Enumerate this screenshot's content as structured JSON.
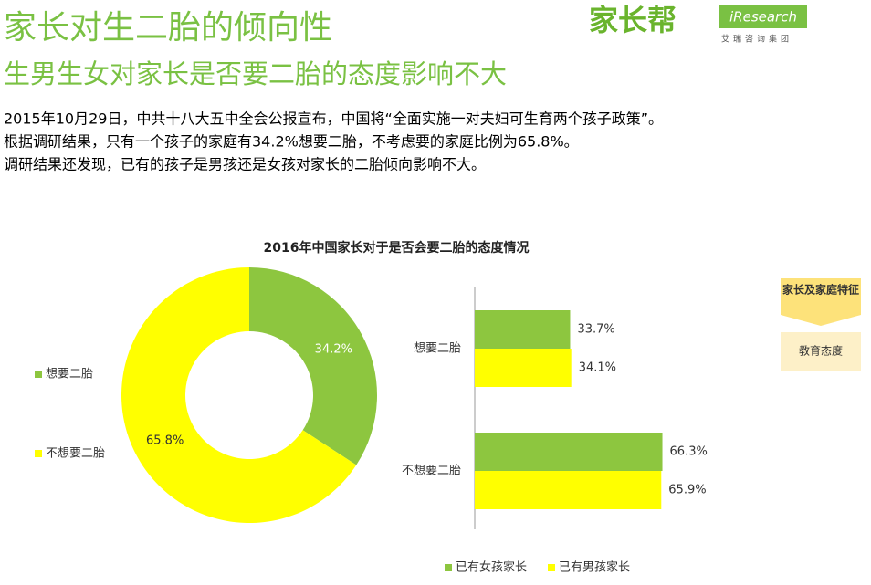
{
  "header": {
    "title": "家长对生二胎的倾向性",
    "subtitle": "生男生女对家长是否要二胎的态度影响不大",
    "logo": "家长帮",
    "logo2": "iResearch",
    "logo2_sub": "艾瑞咨询集团"
  },
  "body": [
    "2015年10月29日，中共十八大五中全会公报宣布，中国将“全面实施一对夫妇可生育两个孩子政策”。",
    "根据调研结果，只有一个孩子的家庭有34.2%想要二胎，不考虑要的家庭比例为65.8%。",
    "调研结果还发现，已有的孩子是男孩还是女孩对家长的二胎倾向影响不大。"
  ],
  "figure_title": "2016年中国家长对于是否会要二胎的态度情况",
  "side_tabs": [
    "家长及家庭特征",
    "教育态度"
  ],
  "chart_data": [
    {
      "type": "pie",
      "categories": [
        "想要二胎",
        "不想要二胎"
      ],
      "values": [
        34.2,
        65.8
      ],
      "value_labels": [
        "34.2%",
        "65.8%"
      ],
      "colors": [
        "#8dc63f",
        "#ffff00"
      ]
    },
    {
      "type": "hbar",
      "categories": [
        "想要二胎",
        "不想要二胎"
      ],
      "xlim": [
        0,
        70
      ],
      "series": [
        {
          "name": "已有女孩家长",
          "color": "#8dc63f",
          "values": [
            33.7,
            66.3
          ],
          "value_labels": [
            "33.7%",
            "66.3%"
          ]
        },
        {
          "name": "已有男孩家长",
          "color": "#ffff00",
          "values": [
            34.1,
            65.9
          ],
          "value_labels": [
            "34.1%",
            "65.9%"
          ]
        }
      ]
    }
  ]
}
